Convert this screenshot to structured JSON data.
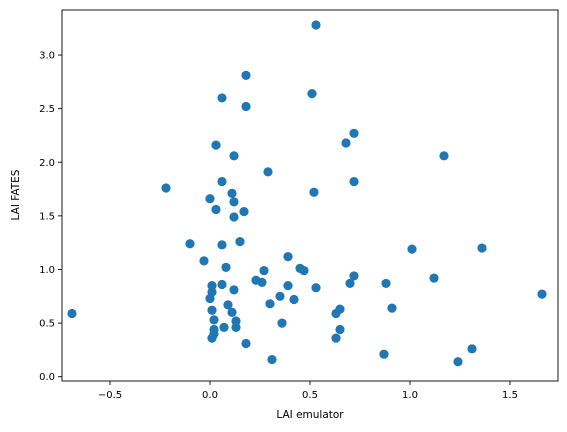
{
  "chart_data": {
    "type": "scatter",
    "title": "",
    "xlabel": "LAI emulator",
    "ylabel": "LAI FATES",
    "xlim": [
      -0.74,
      1.74
    ],
    "ylim": [
      -0.04,
      3.42
    ],
    "xticks": [
      -0.5,
      0.0,
      0.5,
      1.0,
      1.5
    ],
    "xtick_labels": [
      "−0.5",
      "0.0",
      "0.5",
      "1.0",
      "1.5"
    ],
    "yticks": [
      0.0,
      0.5,
      1.0,
      1.5,
      2.0,
      2.5,
      3.0
    ],
    "ytick_labels": [
      "0.0",
      "0.5",
      "1.0",
      "1.5",
      "2.0",
      "2.5",
      "3.0"
    ],
    "grid": false,
    "marker_color": "#1f77b4",
    "points": [
      {
        "x": 0.53,
        "y": 3.28
      },
      {
        "x": 0.18,
        "y": 2.81
      },
      {
        "x": 0.06,
        "y": 2.6
      },
      {
        "x": 0.18,
        "y": 2.52
      },
      {
        "x": 0.51,
        "y": 2.64
      },
      {
        "x": 0.72,
        "y": 2.27
      },
      {
        "x": 0.68,
        "y": 2.18
      },
      {
        "x": 0.03,
        "y": 2.16
      },
      {
        "x": 0.12,
        "y": 2.06
      },
      {
        "x": 1.17,
        "y": 2.06
      },
      {
        "x": 0.29,
        "y": 1.91
      },
      {
        "x": 0.72,
        "y": 1.82
      },
      {
        "x": 0.06,
        "y": 1.82
      },
      {
        "x": -0.22,
        "y": 1.76
      },
      {
        "x": 0.52,
        "y": 1.72
      },
      {
        "x": 0.11,
        "y": 1.71
      },
      {
        "x": 0.0,
        "y": 1.66
      },
      {
        "x": 0.12,
        "y": 1.63
      },
      {
        "x": 0.03,
        "y": 1.56
      },
      {
        "x": 0.17,
        "y": 1.54
      },
      {
        "x": 0.12,
        "y": 1.49
      },
      {
        "x": 0.15,
        "y": 1.26
      },
      {
        "x": -0.1,
        "y": 1.24
      },
      {
        "x": 0.06,
        "y": 1.23
      },
      {
        "x": 1.36,
        "y": 1.2
      },
      {
        "x": 1.01,
        "y": 1.19
      },
      {
        "x": 0.39,
        "y": 1.12
      },
      {
        "x": -0.03,
        "y": 1.08
      },
      {
        "x": 0.08,
        "y": 1.02
      },
      {
        "x": 0.45,
        "y": 1.01
      },
      {
        "x": 0.47,
        "y": 0.99
      },
      {
        "x": 0.27,
        "y": 0.99
      },
      {
        "x": 0.72,
        "y": 0.94
      },
      {
        "x": 1.12,
        "y": 0.92
      },
      {
        "x": 0.23,
        "y": 0.9
      },
      {
        "x": 0.26,
        "y": 0.88
      },
      {
        "x": 0.7,
        "y": 0.87
      },
      {
        "x": 0.88,
        "y": 0.87
      },
      {
        "x": 0.06,
        "y": 0.86
      },
      {
        "x": 0.01,
        "y": 0.85
      },
      {
        "x": 0.39,
        "y": 0.85
      },
      {
        "x": 0.53,
        "y": 0.83
      },
      {
        "x": 0.12,
        "y": 0.81
      },
      {
        "x": 0.01,
        "y": 0.79
      },
      {
        "x": 1.66,
        "y": 0.77
      },
      {
        "x": 0.35,
        "y": 0.75
      },
      {
        "x": 0.0,
        "y": 0.73
      },
      {
        "x": 0.42,
        "y": 0.72
      },
      {
        "x": 0.3,
        "y": 0.68
      },
      {
        "x": 0.09,
        "y": 0.67
      },
      {
        "x": 0.91,
        "y": 0.64
      },
      {
        "x": 0.65,
        "y": 0.63
      },
      {
        "x": 0.01,
        "y": 0.62
      },
      {
        "x": 0.11,
        "y": 0.6
      },
      {
        "x": 0.63,
        "y": 0.59
      },
      {
        "x": -0.69,
        "y": 0.59
      },
      {
        "x": 0.02,
        "y": 0.53
      },
      {
        "x": 0.13,
        "y": 0.52
      },
      {
        "x": 0.36,
        "y": 0.5
      },
      {
        "x": 0.07,
        "y": 0.46
      },
      {
        "x": 0.13,
        "y": 0.46
      },
      {
        "x": 0.02,
        "y": 0.44
      },
      {
        "x": 0.65,
        "y": 0.44
      },
      {
        "x": 0.02,
        "y": 0.4
      },
      {
        "x": 0.63,
        "y": 0.36
      },
      {
        "x": 0.01,
        "y": 0.36
      },
      {
        "x": 0.18,
        "y": 0.31
      },
      {
        "x": 1.31,
        "y": 0.26
      },
      {
        "x": 0.87,
        "y": 0.21
      },
      {
        "x": 0.31,
        "y": 0.16
      },
      {
        "x": 1.24,
        "y": 0.14
      }
    ]
  }
}
